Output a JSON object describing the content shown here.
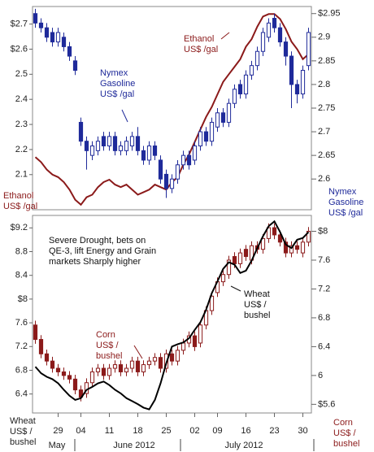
{
  "chart_data": {
    "type": "candlestick",
    "categories": [
      null,
      null,
      null,
      null,
      "29",
      null,
      null,
      null,
      "04",
      null,
      null,
      null,
      null,
      "11",
      null,
      null,
      null,
      null,
      "18",
      null,
      null,
      null,
      null,
      "25",
      null,
      null,
      null,
      null,
      "02",
      null,
      null,
      null,
      "09",
      null,
      null,
      null,
      null,
      "16",
      null,
      null,
      null,
      null,
      "23",
      null,
      null,
      null,
      null,
      "30",
      null
    ],
    "months": [
      "May",
      "June 2012",
      "July 2012"
    ],
    "panels": [
      {
        "ylim": [
          1.96,
          2.77
        ],
        "yticks": [
          {
            "value": 2.7,
            "label": "$2.7"
          },
          {
            "value": 2.6,
            "label": "$2.6"
          },
          2.5,
          2.4,
          2.3,
          2.2,
          2.1
        ],
        "y2lim": [
          2.535,
          2.965
        ],
        "y2ticks": [
          {
            "value": 2.95,
            "label": "$2.95"
          },
          2.9,
          2.85,
          2.8,
          2.75,
          2.7,
          2.65,
          2.6
        ],
        "left_label": {
          "lines": [
            "Ethanol",
            "US$ /gal"
          ],
          "color": "#8b1a1a"
        },
        "right_label": {
          "lines": [
            "Nymex",
            "Gasoline",
            "US$ /gal"
          ],
          "color": "#1f2a9a"
        },
        "annotations": [
          {
            "lines": [
              "Ethanol",
              "US$ /gal"
            ],
            "color": "#8b1a1a"
          },
          {
            "lines": [
              "Nymex",
              "Gasoline",
              "US$ /gal"
            ],
            "color": "#1f2a9a"
          }
        ],
        "series": [
          {
            "type": "line",
            "color": "#8b1a1a",
            "values": [
              2.17,
              2.15,
              2.12,
              2.1,
              2.09,
              2.07,
              2.04,
              2.0,
              1.98,
              2.01,
              2.02,
              2.05,
              2.07,
              2.08,
              2.06,
              2.05,
              2.06,
              2.04,
              2.02,
              2.03,
              2.04,
              2.06,
              2.05,
              2.04,
              2.07,
              2.09,
              2.14,
              2.18,
              2.23,
              2.28,
              2.33,
              2.37,
              2.42,
              2.47,
              2.5,
              2.53,
              2.56,
              2.61,
              2.64,
              2.69,
              2.73,
              2.74,
              2.74,
              2.72,
              2.68,
              2.63,
              2.6,
              2.56,
              2.58
            ]
          },
          {
            "type": "candlestick",
            "axis": "y2",
            "color": "#1f2a9a",
            "open": [
              2.95,
              2.93,
              2.92,
              2.91,
              2.89,
              2.9,
              2.88,
              2.85,
              2.72,
              2.68,
              2.65,
              2.66,
              2.69,
              2.67,
              2.69,
              2.66,
              2.66,
              2.67,
              2.69,
              2.66,
              2.64,
              2.67,
              2.64,
              2.61,
              2.58,
              2.6,
              2.63,
              2.65,
              2.64,
              2.67,
              2.7,
              2.68,
              2.71,
              2.74,
              2.72,
              2.76,
              2.8,
              2.78,
              2.82,
              2.84,
              2.87,
              2.9,
              2.94,
              2.92,
              2.89,
              2.86,
              2.8,
              2.78,
              2.84
            ],
            "high": [
              2.96,
              2.94,
              2.93,
              2.92,
              2.92,
              2.91,
              2.89,
              2.86,
              2.73,
              2.69,
              2.68,
              2.69,
              2.7,
              2.7,
              2.7,
              2.68,
              2.69,
              2.7,
              2.71,
              2.67,
              2.68,
              2.68,
              2.65,
              2.62,
              2.61,
              2.64,
              2.66,
              2.66,
              2.68,
              2.71,
              2.71,
              2.73,
              2.75,
              2.75,
              2.77,
              2.8,
              2.81,
              2.83,
              2.85,
              2.88,
              2.92,
              2.94,
              2.95,
              2.93,
              2.9,
              2.87,
              2.81,
              2.84,
              2.92
            ],
            "low": [
              2.92,
              2.91,
              2.89,
              2.88,
              2.88,
              2.87,
              2.85,
              2.82,
              2.67,
              2.62,
              2.64,
              2.65,
              2.66,
              2.66,
              2.65,
              2.65,
              2.65,
              2.66,
              2.65,
              2.63,
              2.63,
              2.64,
              2.59,
              2.56,
              2.57,
              2.59,
              2.62,
              2.62,
              2.63,
              2.66,
              2.67,
              2.67,
              2.7,
              2.71,
              2.71,
              2.75,
              2.77,
              2.77,
              2.81,
              2.83,
              2.86,
              2.89,
              2.91,
              2.88,
              2.84,
              2.75,
              2.76,
              2.77,
              2.83
            ],
            "close": [
              2.93,
              2.92,
              2.9,
              2.89,
              2.91,
              2.88,
              2.86,
              2.83,
              2.68,
              2.66,
              2.67,
              2.68,
              2.67,
              2.69,
              2.66,
              2.67,
              2.68,
              2.69,
              2.66,
              2.64,
              2.67,
              2.65,
              2.6,
              2.58,
              2.6,
              2.63,
              2.65,
              2.63,
              2.67,
              2.7,
              2.68,
              2.72,
              2.74,
              2.72,
              2.76,
              2.79,
              2.78,
              2.82,
              2.84,
              2.87,
              2.91,
              2.93,
              2.92,
              2.89,
              2.86,
              2.8,
              2.78,
              2.83,
              2.91
            ]
          }
        ]
      },
      {
        "ylim": [
          6.08,
          9.41
        ],
        "yticks": [
          {
            "value": 9.2,
            "label": "$9.2"
          },
          8.8,
          8.4,
          {
            "value": 8,
            "label": "$8"
          },
          7.6,
          7.2,
          6.8,
          6.4
        ],
        "y2lim": [
          5.48,
          8.22
        ],
        "y2ticks": [
          {
            "value": 8,
            "label": "$8"
          },
          7.6,
          7.2,
          6.8,
          6.4,
          6,
          {
            "value": 5.6,
            "label": "$5.6"
          }
        ],
        "left_label": {
          "lines": [
            "Wheat",
            "US$ /",
            "bushel"
          ],
          "color": "#222222"
        },
        "right_label": {
          "lines": [
            "Corn",
            "US$ /",
            "bushel"
          ],
          "color": "#8b1a1a"
        },
        "annotations": [
          {
            "lines": [
              "Severe Drought, bets on",
              "QE-3, lift Energy and Grain",
              "markets Sharply higher"
            ],
            "color": "#111111"
          },
          {
            "lines": [
              "Wheat",
              "US$ /",
              "bushel"
            ],
            "color": "#111111"
          },
          {
            "lines": [
              "Corn",
              "US$ /",
              "bushel"
            ],
            "color": "#8b1a1a"
          }
        ],
        "series": [
          {
            "type": "candlestick",
            "axis": "y2",
            "color": "#8b1a1a",
            "open": [
              6.7,
              6.5,
              6.3,
              6.2,
              6.1,
              6.05,
              6.0,
              5.95,
              5.8,
              5.75,
              5.9,
              6.05,
              6.1,
              6.0,
              6.1,
              6.15,
              6.05,
              6.1,
              6.2,
              6.05,
              6.15,
              6.2,
              6.25,
              6.1,
              6.3,
              6.2,
              6.35,
              6.45,
              6.55,
              6.45,
              6.7,
              6.9,
              7.15,
              7.3,
              7.4,
              7.65,
              7.55,
              7.75,
              7.6,
              7.8,
              7.75,
              7.9,
              8.05,
              7.95,
              7.85,
              7.7,
              7.8,
              7.7,
              7.85
            ],
            "high": [
              6.76,
              6.56,
              6.36,
              6.26,
              6.16,
              6.11,
              6.06,
              6.01,
              5.86,
              5.96,
              6.11,
              6.16,
              6.16,
              6.16,
              6.21,
              6.21,
              6.16,
              6.26,
              6.26,
              6.21,
              6.26,
              6.31,
              6.31,
              6.36,
              6.36,
              6.41,
              6.51,
              6.61,
              6.61,
              6.76,
              6.96,
              7.16,
              7.36,
              7.46,
              7.66,
              7.71,
              7.76,
              7.81,
              7.86,
              7.86,
              7.96,
              8.11,
              8.11,
              8.01,
              7.91,
              7.86,
              7.86,
              7.91,
              8.06
            ],
            "low": [
              6.44,
              6.24,
              6.14,
              6.04,
              5.99,
              5.94,
              5.89,
              5.74,
              5.64,
              5.69,
              5.84,
              5.99,
              5.94,
              5.94,
              6.04,
              5.99,
              5.99,
              6.04,
              5.99,
              5.99,
              6.09,
              6.14,
              6.04,
              6.04,
              6.14,
              6.14,
              6.29,
              6.39,
              6.34,
              6.39,
              6.64,
              6.84,
              7.09,
              7.24,
              7.34,
              7.49,
              7.49,
              7.59,
              7.54,
              7.69,
              7.69,
              7.84,
              7.89,
              7.79,
              7.64,
              7.64,
              7.69,
              7.64,
              7.79
            ],
            "close": [
              6.5,
              6.3,
              6.2,
              6.1,
              6.05,
              6.0,
              5.95,
              5.8,
              5.7,
              5.9,
              6.05,
              6.1,
              6.0,
              6.1,
              6.15,
              6.05,
              6.1,
              6.2,
              6.05,
              6.15,
              6.2,
              6.25,
              6.1,
              6.3,
              6.2,
              6.35,
              6.45,
              6.55,
              6.4,
              6.7,
              6.9,
              7.1,
              7.3,
              7.4,
              7.6,
              7.55,
              7.7,
              7.65,
              7.8,
              7.75,
              7.9,
              8.05,
              7.95,
              7.85,
              7.7,
              7.8,
              7.75,
              7.85,
              8.0
            ]
          },
          {
            "type": "line",
            "color": "#000000",
            "values": [
              6.86,
              6.75,
              6.69,
              6.65,
              6.58,
              6.47,
              6.37,
              6.3,
              6.33,
              6.47,
              6.52,
              6.58,
              6.61,
              6.55,
              6.47,
              6.41,
              6.33,
              6.28,
              6.23,
              6.17,
              6.14,
              6.3,
              6.58,
              6.92,
              7.2,
              7.24,
              7.27,
              7.34,
              7.48,
              7.61,
              7.82,
              8.1,
              8.3,
              8.51,
              8.62,
              8.58,
              8.44,
              8.48,
              8.65,
              8.86,
              9.06,
              9.23,
              9.31,
              9.13,
              8.92,
              8.86,
              9.0,
              9.03,
              9.13
            ]
          }
        ]
      }
    ]
  }
}
